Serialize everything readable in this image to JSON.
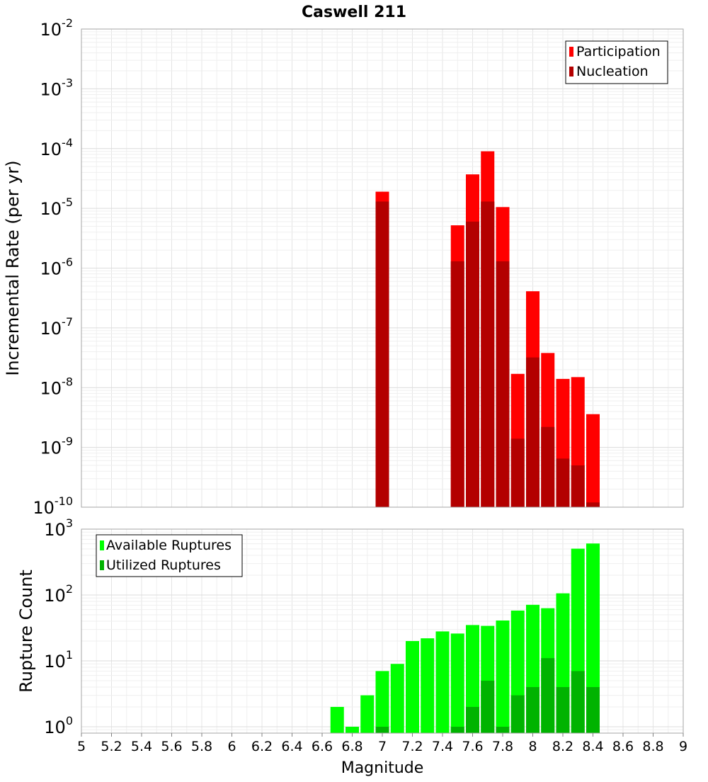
{
  "title": "Caswell 211",
  "chart_data": [
    {
      "type": "bar",
      "title": "Caswell 211",
      "ylabel": "Incremental Rate (per yr)",
      "yscale": "log",
      "ylim": [
        1e-10,
        0.01
      ],
      "xlim": [
        5,
        9
      ],
      "legend_position": "top-right",
      "series": [
        {
          "name": "Participation",
          "color": "#ff0000",
          "x": [
            7.0,
            7.5,
            7.6,
            7.7,
            7.8,
            7.9,
            8.0,
            8.1,
            8.2,
            8.3,
            8.4
          ],
          "values": [
            1.9e-05,
            5.2e-06,
            3.7e-05,
            9e-05,
            1.05e-05,
            1.7e-08,
            4.1e-07,
            3.8e-08,
            1.4e-08,
            1.5e-08,
            3.6e-09
          ]
        },
        {
          "name": "Nucleation",
          "color": "#b30000",
          "x": [
            7.0,
            7.5,
            7.6,
            7.7,
            7.8,
            7.9,
            8.0,
            8.1,
            8.2,
            8.3,
            8.4
          ],
          "values": [
            1.3e-05,
            1.3e-06,
            6e-06,
            1.3e-05,
            1.3e-06,
            1.4e-09,
            3.2e-08,
            2.2e-09,
            6.5e-10,
            5e-10,
            1.2e-10
          ]
        }
      ],
      "ytick_labels": [
        {
          "base": "10",
          "exp": "-10"
        },
        {
          "base": "10",
          "exp": "-9"
        },
        {
          "base": "10",
          "exp": "-8"
        },
        {
          "base": "10",
          "exp": "-7"
        },
        {
          "base": "10",
          "exp": "-6"
        },
        {
          "base": "10",
          "exp": "-5"
        },
        {
          "base": "10",
          "exp": "-4"
        },
        {
          "base": "10",
          "exp": "-3"
        },
        {
          "base": "10",
          "exp": "-2"
        }
      ]
    },
    {
      "type": "bar",
      "xlabel": "Magnitude",
      "ylabel": "Rupture Count",
      "yscale": "log",
      "ylim": [
        0.8,
        1000
      ],
      "xlim": [
        5,
        9
      ],
      "legend_position": "top-left",
      "series": [
        {
          "name": "Available Ruptures",
          "color": "#00ff00",
          "x": [
            6.7,
            6.8,
            6.9,
            7.0,
            7.1,
            7.2,
            7.3,
            7.4,
            7.5,
            7.6,
            7.7,
            7.8,
            7.9,
            8.0,
            8.1,
            8.2,
            8.3,
            8.4
          ],
          "values": [
            2,
            1,
            3,
            7,
            9,
            20,
            22,
            28,
            26,
            35,
            34,
            41,
            58,
            71,
            63,
            106,
            505,
            605
          ]
        },
        {
          "name": "Utilized Ruptures",
          "color": "#00b300",
          "x": [
            7.0,
            7.5,
            7.6,
            7.7,
            7.8,
            7.9,
            8.0,
            8.1,
            8.2,
            8.3,
            8.4
          ],
          "values": [
            1,
            1,
            2,
            5,
            1,
            3,
            4,
            11,
            4,
            7,
            4
          ]
        }
      ],
      "ytick_labels": [
        {
          "base": "10",
          "exp": "0"
        },
        {
          "base": "10",
          "exp": "1"
        },
        {
          "base": "10",
          "exp": "2"
        },
        {
          "base": "10",
          "exp": "3"
        }
      ],
      "xtick_labels": [
        "5",
        "5.2",
        "5.4",
        "5.6",
        "5.8",
        "6",
        "6.2",
        "6.4",
        "6.6",
        "6.8",
        "7",
        "7.2",
        "7.4",
        "7.6",
        "7.8",
        "8",
        "8.2",
        "8.4",
        "8.6",
        "8.8",
        "9"
      ]
    }
  ]
}
